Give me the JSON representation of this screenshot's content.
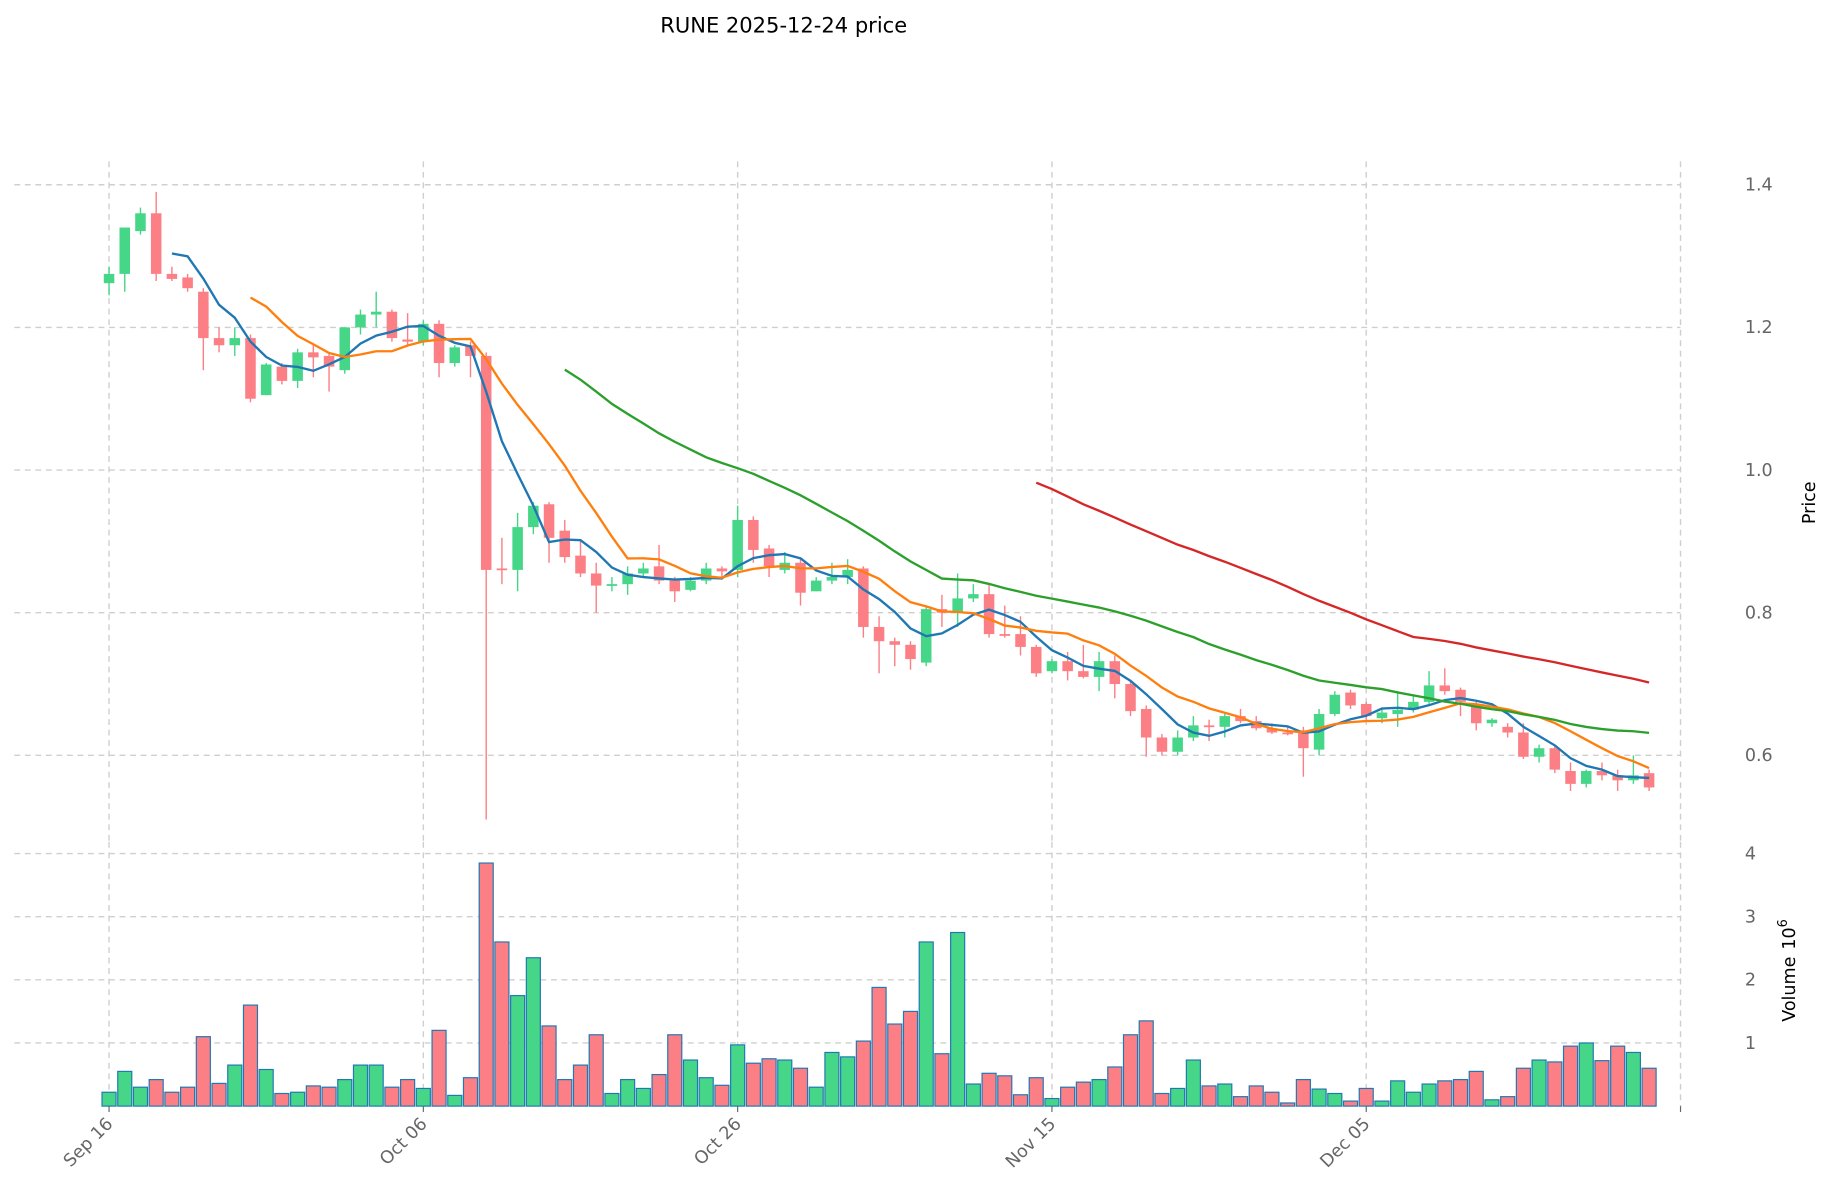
{
  "chart_data": {
    "type": "candlestick",
    "title": "RUNE  2025-12-24  price",
    "ylabel": "Price",
    "volume_label": "Volume",
    "volume_exponent_label": "10",
    "volume_exponent": "6",
    "ylim": [
      0.47,
      1.43
    ],
    "volume_ylim": [
      0,
      4.1
    ],
    "grid": true,
    "first_date": "Sep 16",
    "x_ticks": [
      {
        "label": "Sep 16",
        "index": 0
      },
      {
        "label": "Oct 06",
        "index": 20
      },
      {
        "label": "Oct 26",
        "index": 40
      },
      {
        "label": "Nov 15",
        "index": 60
      },
      {
        "label": "Dec 05",
        "index": 80
      }
    ],
    "y_ticks": [
      "0.6",
      "0.8",
      "1.0",
      "1.2",
      "1.4"
    ],
    "y_tick_values": [
      0.6,
      0.8,
      1.0,
      1.2,
      1.4
    ],
    "volume_ticks": [
      "1",
      "2",
      "3",
      "4"
    ],
    "volume_tick_values": [
      1,
      2,
      3,
      4
    ],
    "colors": {
      "up": "#45d688",
      "down": "#fb7f84",
      "volume_edge": "#1f77b4"
    },
    "moving_averages": [
      {
        "window": 5,
        "color": "#1f77b4"
      },
      {
        "window": 10,
        "color": "#ff7f0e"
      },
      {
        "window": 30,
        "color": "#2ca02c"
      },
      {
        "window": 60,
        "color": "#d62728"
      }
    ],
    "ohlcv_fields": [
      "open",
      "high",
      "low",
      "close",
      "volume_millions"
    ],
    "ohlcv": [
      [
        1.262,
        1.285,
        1.245,
        1.275,
        0.22
      ],
      [
        1.275,
        1.34,
        1.25,
        1.34,
        0.55
      ],
      [
        1.335,
        1.368,
        1.33,
        1.36,
        0.3
      ],
      [
        1.36,
        1.39,
        1.265,
        1.275,
        0.42
      ],
      [
        1.275,
        1.285,
        1.265,
        1.268,
        0.22
      ],
      [
        1.27,
        1.275,
        1.25,
        1.255,
        0.3
      ],
      [
        1.25,
        1.255,
        1.14,
        1.185,
        1.1
      ],
      [
        1.185,
        1.2,
        1.165,
        1.175,
        0.36
      ],
      [
        1.175,
        1.2,
        1.16,
        1.185,
        0.65
      ],
      [
        1.185,
        1.19,
        1.095,
        1.1,
        1.6
      ],
      [
        1.105,
        1.15,
        1.105,
        1.148,
        0.58
      ],
      [
        1.145,
        1.15,
        1.12,
        1.125,
        0.2
      ],
      [
        1.125,
        1.17,
        1.115,
        1.165,
        0.22
      ],
      [
        1.165,
        1.175,
        1.13,
        1.158,
        0.32
      ],
      [
        1.16,
        1.165,
        1.11,
        1.145,
        0.3
      ],
      [
        1.14,
        1.2,
        1.135,
        1.2,
        0.42
      ],
      [
        1.2,
        1.225,
        1.19,
        1.218,
        0.65
      ],
      [
        1.218,
        1.25,
        1.2,
        1.222,
        0.65
      ],
      [
        1.222,
        1.225,
        1.18,
        1.185,
        0.3
      ],
      [
        1.183,
        1.22,
        1.175,
        1.18,
        0.42
      ],
      [
        1.18,
        1.21,
        1.175,
        1.205,
        0.28
      ],
      [
        1.205,
        1.21,
        1.13,
        1.15,
        1.2
      ],
      [
        1.15,
        1.175,
        1.145,
        1.172,
        0.17
      ],
      [
        1.175,
        1.18,
        1.13,
        1.16,
        0.45
      ],
      [
        1.16,
        1.165,
        0.51,
        0.86,
        3.85
      ],
      [
        0.862,
        0.905,
        0.84,
        0.86,
        2.6
      ],
      [
        0.86,
        0.94,
        0.83,
        0.92,
        1.75
      ],
      [
        0.92,
        0.955,
        0.91,
        0.95,
        2.35
      ],
      [
        0.952,
        0.955,
        0.87,
        0.905,
        1.27
      ],
      [
        0.915,
        0.93,
        0.87,
        0.878,
        0.42
      ],
      [
        0.88,
        0.9,
        0.85,
        0.855,
        0.65
      ],
      [
        0.855,
        0.87,
        0.8,
        0.838,
        1.13
      ],
      [
        0.838,
        0.85,
        0.83,
        0.84,
        0.2
      ],
      [
        0.84,
        0.865,
        0.825,
        0.855,
        0.42
      ],
      [
        0.855,
        0.87,
        0.85,
        0.862,
        0.28
      ],
      [
        0.865,
        0.895,
        0.84,
        0.845,
        0.5
      ],
      [
        0.845,
        0.85,
        0.815,
        0.83,
        1.13
      ],
      [
        0.832,
        0.85,
        0.83,
        0.845,
        0.73
      ],
      [
        0.845,
        0.87,
        0.84,
        0.862,
        0.45
      ],
      [
        0.862,
        0.865,
        0.85,
        0.858,
        0.33
      ],
      [
        0.86,
        0.95,
        0.85,
        0.93,
        0.97
      ],
      [
        0.93,
        0.935,
        0.87,
        0.888,
        0.68
      ],
      [
        0.89,
        0.895,
        0.85,
        0.865,
        0.75
      ],
      [
        0.86,
        0.885,
        0.855,
        0.87,
        0.73
      ],
      [
        0.87,
        0.875,
        0.81,
        0.828,
        0.6
      ],
      [
        0.83,
        0.85,
        0.83,
        0.845,
        0.3
      ],
      [
        0.845,
        0.87,
        0.84,
        0.85,
        0.85
      ],
      [
        0.85,
        0.875,
        0.84,
        0.86,
        0.78
      ],
      [
        0.862,
        0.865,
        0.765,
        0.78,
        1.03
      ],
      [
        0.78,
        0.795,
        0.715,
        0.76,
        1.88
      ],
      [
        0.76,
        0.765,
        0.725,
        0.755,
        1.3
      ],
      [
        0.755,
        0.76,
        0.72,
        0.735,
        1.5
      ],
      [
        0.73,
        0.81,
        0.725,
        0.805,
        2.6
      ],
      [
        0.805,
        0.825,
        0.78,
        0.8,
        0.83
      ],
      [
        0.8,
        0.855,
        0.78,
        0.82,
        2.75
      ],
      [
        0.82,
        0.84,
        0.815,
        0.826,
        0.35
      ],
      [
        0.826,
        0.84,
        0.765,
        0.77,
        0.52
      ],
      [
        0.77,
        0.81,
        0.765,
        0.768,
        0.48
      ],
      [
        0.77,
        0.795,
        0.74,
        0.752,
        0.18
      ],
      [
        0.752,
        0.755,
        0.71,
        0.715,
        0.45
      ],
      [
        0.718,
        0.735,
        0.715,
        0.732,
        0.12
      ],
      [
        0.732,
        0.745,
        0.705,
        0.718,
        0.3
      ],
      [
        0.718,
        0.755,
        0.708,
        0.71,
        0.38
      ],
      [
        0.71,
        0.745,
        0.69,
        0.732,
        0.42
      ],
      [
        0.732,
        0.74,
        0.68,
        0.7,
        0.62
      ],
      [
        0.7,
        0.705,
        0.655,
        0.662,
        1.13
      ],
      [
        0.665,
        0.67,
        0.598,
        0.625,
        1.35
      ],
      [
        0.625,
        0.63,
        0.6,
        0.605,
        0.2
      ],
      [
        0.605,
        0.635,
        0.6,
        0.625,
        0.28
      ],
      [
        0.625,
        0.655,
        0.62,
        0.642,
        0.73
      ],
      [
        0.642,
        0.65,
        0.62,
        0.64,
        0.32
      ],
      [
        0.64,
        0.66,
        0.625,
        0.655,
        0.35
      ],
      [
        0.655,
        0.665,
        0.645,
        0.648,
        0.15
      ],
      [
        0.648,
        0.655,
        0.635,
        0.638,
        0.32
      ],
      [
        0.638,
        0.645,
        0.63,
        0.632,
        0.22
      ],
      [
        0.632,
        0.64,
        0.628,
        0.63,
        0.05
      ],
      [
        0.635,
        0.64,
        0.57,
        0.61,
        0.42
      ],
      [
        0.608,
        0.665,
        0.6,
        0.658,
        0.27
      ],
      [
        0.658,
        0.69,
        0.655,
        0.685,
        0.2
      ],
      [
        0.688,
        0.692,
        0.665,
        0.67,
        0.08
      ],
      [
        0.672,
        0.675,
        0.65,
        0.655,
        0.28
      ],
      [
        0.652,
        0.665,
        0.645,
        0.66,
        0.08
      ],
      [
        0.658,
        0.69,
        0.64,
        0.664,
        0.4
      ],
      [
        0.664,
        0.685,
        0.66,
        0.675,
        0.22
      ],
      [
        0.675,
        0.718,
        0.67,
        0.698,
        0.35
      ],
      [
        0.698,
        0.722,
        0.685,
        0.69,
        0.4
      ],
      [
        0.692,
        0.695,
        0.655,
        0.675,
        0.42
      ],
      [
        0.672,
        0.675,
        0.635,
        0.645,
        0.55
      ],
      [
        0.645,
        0.652,
        0.64,
        0.65,
        0.1
      ],
      [
        0.64,
        0.645,
        0.625,
        0.632,
        0.15
      ],
      [
        0.632,
        0.645,
        0.595,
        0.598,
        0.6
      ],
      [
        0.598,
        0.615,
        0.59,
        0.61,
        0.73
      ],
      [
        0.61,
        0.615,
        0.575,
        0.58,
        0.7
      ],
      [
        0.578,
        0.59,
        0.55,
        0.56,
        0.95
      ],
      [
        0.56,
        0.58,
        0.555,
        0.578,
        1.0
      ],
      [
        0.578,
        0.59,
        0.565,
        0.572,
        0.72
      ],
      [
        0.572,
        0.58,
        0.55,
        0.565,
        0.95
      ],
      [
        0.565,
        0.6,
        0.56,
        0.572,
        0.85
      ],
      [
        0.575,
        0.58,
        0.55,
        0.555,
        0.6
      ]
    ]
  }
}
